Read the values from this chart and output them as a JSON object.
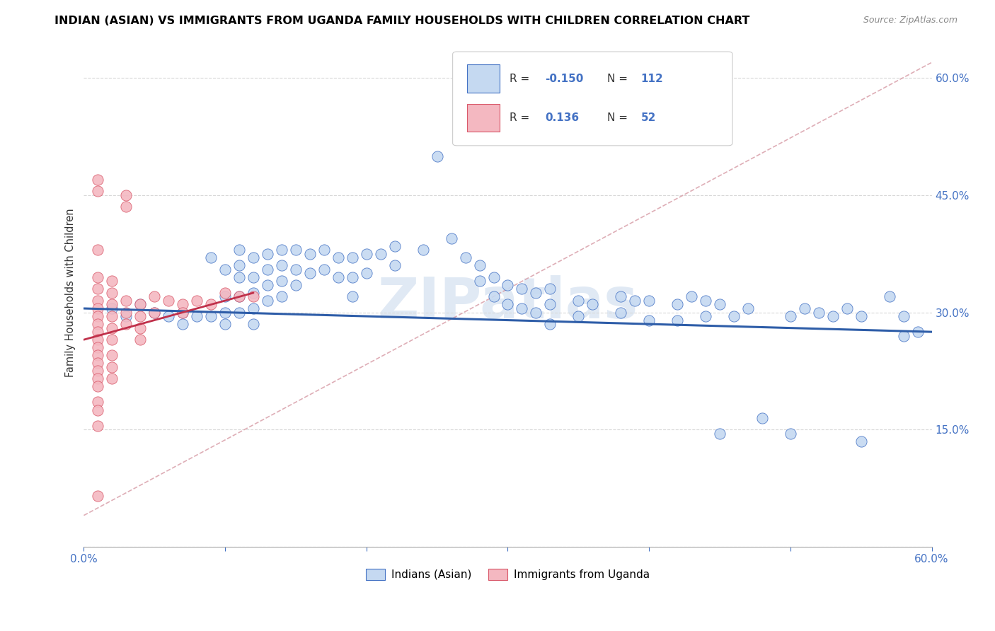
{
  "title": "INDIAN (ASIAN) VS IMMIGRANTS FROM UGANDA FAMILY HOUSEHOLDS WITH CHILDREN CORRELATION CHART",
  "source": "Source: ZipAtlas.com",
  "ylabel": "Family Households with Children",
  "xlim": [
    0.0,
    0.6
  ],
  "ylim": [
    0.0,
    0.65
  ],
  "r_blue": -0.15,
  "n_blue": 112,
  "r_pink": 0.136,
  "n_pink": 52,
  "blue_fill": "#c5d9f1",
  "blue_edge": "#4472c4",
  "pink_fill": "#f4b8c1",
  "pink_edge": "#d9596a",
  "blue_line_color": "#2e5da8",
  "pink_line_color": "#c0304a",
  "dash_line_color": "#d9a0aa",
  "watermark": "ZIPatlas",
  "title_fontsize": 11.5,
  "source_fontsize": 9,
  "scatter_size": 120,
  "blue_scatter": [
    [
      0.02,
      0.305
    ],
    [
      0.03,
      0.295
    ],
    [
      0.04,
      0.31
    ],
    [
      0.05,
      0.3
    ],
    [
      0.06,
      0.295
    ],
    [
      0.07,
      0.3
    ],
    [
      0.07,
      0.285
    ],
    [
      0.08,
      0.295
    ],
    [
      0.09,
      0.37
    ],
    [
      0.09,
      0.295
    ],
    [
      0.1,
      0.355
    ],
    [
      0.1,
      0.32
    ],
    [
      0.1,
      0.3
    ],
    [
      0.1,
      0.285
    ],
    [
      0.11,
      0.38
    ],
    [
      0.11,
      0.36
    ],
    [
      0.11,
      0.345
    ],
    [
      0.11,
      0.32
    ],
    [
      0.11,
      0.3
    ],
    [
      0.12,
      0.37
    ],
    [
      0.12,
      0.345
    ],
    [
      0.12,
      0.325
    ],
    [
      0.12,
      0.305
    ],
    [
      0.12,
      0.285
    ],
    [
      0.13,
      0.375
    ],
    [
      0.13,
      0.355
    ],
    [
      0.13,
      0.335
    ],
    [
      0.13,
      0.315
    ],
    [
      0.14,
      0.38
    ],
    [
      0.14,
      0.36
    ],
    [
      0.14,
      0.34
    ],
    [
      0.14,
      0.32
    ],
    [
      0.15,
      0.38
    ],
    [
      0.15,
      0.355
    ],
    [
      0.15,
      0.335
    ],
    [
      0.16,
      0.375
    ],
    [
      0.16,
      0.35
    ],
    [
      0.17,
      0.38
    ],
    [
      0.17,
      0.355
    ],
    [
      0.18,
      0.37
    ],
    [
      0.18,
      0.345
    ],
    [
      0.19,
      0.37
    ],
    [
      0.19,
      0.345
    ],
    [
      0.19,
      0.32
    ],
    [
      0.2,
      0.375
    ],
    [
      0.2,
      0.35
    ],
    [
      0.21,
      0.375
    ],
    [
      0.22,
      0.385
    ],
    [
      0.22,
      0.36
    ],
    [
      0.24,
      0.38
    ],
    [
      0.25,
      0.5
    ],
    [
      0.26,
      0.395
    ],
    [
      0.27,
      0.37
    ],
    [
      0.28,
      0.36
    ],
    [
      0.28,
      0.34
    ],
    [
      0.29,
      0.345
    ],
    [
      0.29,
      0.32
    ],
    [
      0.3,
      0.335
    ],
    [
      0.3,
      0.31
    ],
    [
      0.31,
      0.33
    ],
    [
      0.31,
      0.305
    ],
    [
      0.32,
      0.325
    ],
    [
      0.32,
      0.3
    ],
    [
      0.33,
      0.33
    ],
    [
      0.33,
      0.31
    ],
    [
      0.33,
      0.285
    ],
    [
      0.35,
      0.315
    ],
    [
      0.35,
      0.295
    ],
    [
      0.36,
      0.31
    ],
    [
      0.38,
      0.32
    ],
    [
      0.38,
      0.3
    ],
    [
      0.39,
      0.315
    ],
    [
      0.4,
      0.315
    ],
    [
      0.4,
      0.29
    ],
    [
      0.42,
      0.31
    ],
    [
      0.42,
      0.29
    ],
    [
      0.43,
      0.32
    ],
    [
      0.44,
      0.315
    ],
    [
      0.44,
      0.295
    ],
    [
      0.45,
      0.31
    ],
    [
      0.45,
      0.145
    ],
    [
      0.46,
      0.295
    ],
    [
      0.47,
      0.305
    ],
    [
      0.48,
      0.165
    ],
    [
      0.5,
      0.295
    ],
    [
      0.5,
      0.145
    ],
    [
      0.51,
      0.305
    ],
    [
      0.52,
      0.3
    ],
    [
      0.53,
      0.295
    ],
    [
      0.54,
      0.305
    ],
    [
      0.55,
      0.295
    ],
    [
      0.55,
      0.135
    ],
    [
      0.57,
      0.32
    ],
    [
      0.58,
      0.295
    ],
    [
      0.58,
      0.27
    ],
    [
      0.59,
      0.275
    ]
  ],
  "pink_scatter": [
    [
      0.01,
      0.47
    ],
    [
      0.01,
      0.455
    ],
    [
      0.01,
      0.38
    ],
    [
      0.01,
      0.345
    ],
    [
      0.01,
      0.33
    ],
    [
      0.01,
      0.315
    ],
    [
      0.01,
      0.305
    ],
    [
      0.01,
      0.295
    ],
    [
      0.01,
      0.285
    ],
    [
      0.01,
      0.275
    ],
    [
      0.01,
      0.265
    ],
    [
      0.01,
      0.255
    ],
    [
      0.01,
      0.245
    ],
    [
      0.01,
      0.235
    ],
    [
      0.01,
      0.225
    ],
    [
      0.01,
      0.215
    ],
    [
      0.01,
      0.205
    ],
    [
      0.01,
      0.185
    ],
    [
      0.01,
      0.175
    ],
    [
      0.01,
      0.155
    ],
    [
      0.02,
      0.34
    ],
    [
      0.02,
      0.325
    ],
    [
      0.02,
      0.31
    ],
    [
      0.02,
      0.295
    ],
    [
      0.02,
      0.28
    ],
    [
      0.02,
      0.265
    ],
    [
      0.02,
      0.245
    ],
    [
      0.02,
      0.23
    ],
    [
      0.02,
      0.215
    ],
    [
      0.03,
      0.45
    ],
    [
      0.03,
      0.435
    ],
    [
      0.03,
      0.315
    ],
    [
      0.03,
      0.3
    ],
    [
      0.03,
      0.285
    ],
    [
      0.04,
      0.31
    ],
    [
      0.04,
      0.295
    ],
    [
      0.04,
      0.28
    ],
    [
      0.04,
      0.265
    ],
    [
      0.05,
      0.32
    ],
    [
      0.05,
      0.3
    ],
    [
      0.06,
      0.315
    ],
    [
      0.07,
      0.31
    ],
    [
      0.07,
      0.3
    ],
    [
      0.08,
      0.315
    ],
    [
      0.09,
      0.31
    ],
    [
      0.1,
      0.325
    ],
    [
      0.11,
      0.32
    ],
    [
      0.12,
      0.32
    ],
    [
      0.01,
      0.065
    ]
  ]
}
